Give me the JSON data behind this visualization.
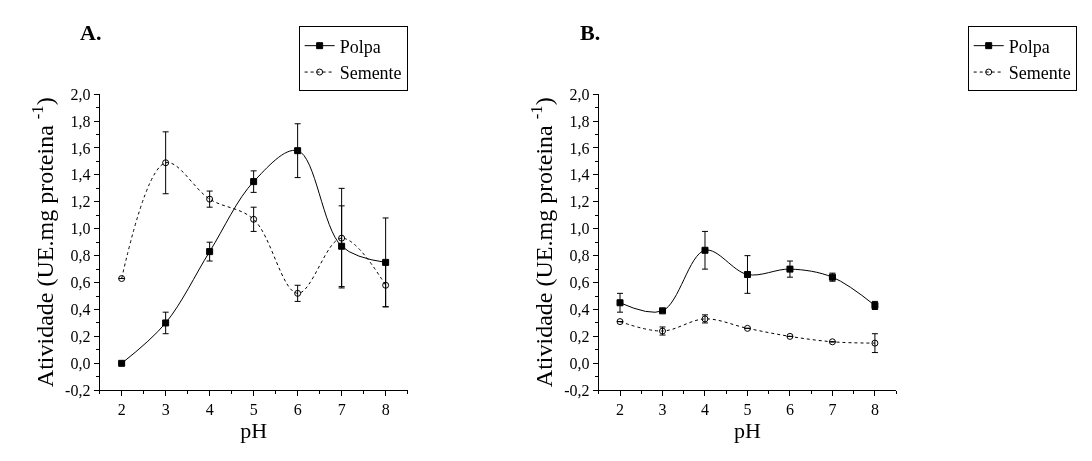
{
  "chart_data": [
    {
      "type": "line",
      "title": "A.",
      "xlabel": "pH",
      "ylabel": "Atividade (UE.mg proteina $^{-1}$)",
      "x": [
        2,
        3,
        4,
        5,
        6,
        7,
        8
      ],
      "series": [
        {
          "name": "Polpa",
          "color": "#000000",
          "marker": "square",
          "line_style": "solid",
          "values": [
            0.0,
            0.3,
            0.83,
            1.35,
            1.58,
            0.87,
            0.75
          ],
          "errors": [
            null,
            0.08,
            0.07,
            0.08,
            0.2,
            0.3,
            0.33
          ]
        },
        {
          "name": "Semente",
          "color": "#000000",
          "marker": "circle",
          "line_style": "dotted",
          "values": [
            0.63,
            1.49,
            1.22,
            1.07,
            0.52,
            0.93,
            0.58
          ],
          "errors": [
            null,
            0.23,
            0.06,
            0.09,
            0.06,
            0.37,
            0.16
          ]
        }
      ],
      "xlim": [
        1.5,
        8.5
      ],
      "xticks": [
        2,
        3,
        4,
        5,
        6,
        7,
        8
      ],
      "ylim": [
        -0.2,
        2.0
      ],
      "yticks": [
        {
          "value": -0.2,
          "label": "-0,2"
        },
        {
          "value": 0.0,
          "label": "0,0"
        },
        {
          "value": 0.2,
          "label": "0,2"
        },
        {
          "value": 0.4,
          "label": "0,4"
        },
        {
          "value": 0.6,
          "label": "0,6"
        },
        {
          "value": 0.8,
          "label": "0,8"
        },
        {
          "value": 1.0,
          "label": "1,0"
        },
        {
          "value": 1.2,
          "label": "1,2"
        },
        {
          "value": 1.4,
          "label": "1,4"
        },
        {
          "value": 1.6,
          "label": "1,6"
        },
        {
          "value": 1.8,
          "label": "1,8"
        },
        {
          "value": 2.0,
          "label": "2,0"
        }
      ],
      "grid": false,
      "legend": "top right"
    },
    {
      "type": "line",
      "title": "B.",
      "xlabel": "pH",
      "ylabel": "Atividade (UE.mg proteina $^{-1}$)",
      "x": [
        2,
        3,
        4,
        5,
        6,
        7,
        8
      ],
      "series": [
        {
          "name": "Polpa",
          "color": "#000000",
          "marker": "square",
          "line_style": "solid",
          "values": [
            0.45,
            0.39,
            0.84,
            0.66,
            0.7,
            0.64,
            0.43
          ],
          "errors": [
            0.07,
            null,
            0.14,
            0.14,
            0.06,
            0.03,
            0.03
          ]
        },
        {
          "name": "Semente",
          "color": "#000000",
          "marker": "circle",
          "line_style": "dotted",
          "values": [
            0.31,
            0.24,
            0.33,
            0.26,
            0.2,
            0.16,
            0.15
          ],
          "errors": [
            null,
            0.03,
            0.03,
            null,
            null,
            null,
            0.07
          ]
        }
      ],
      "xlim": [
        1.5,
        8.5
      ],
      "xticks": [
        2,
        3,
        4,
        5,
        6,
        7,
        8
      ],
      "ylim": [
        -0.2,
        2.0
      ],
      "yticks": [
        {
          "value": -0.2,
          "label": "-0,2"
        },
        {
          "value": 0.0,
          "label": "0,0"
        },
        {
          "value": 0.2,
          "label": "0,2"
        },
        {
          "value": 0.4,
          "label": "0,4"
        },
        {
          "value": 0.6,
          "label": "0,6"
        },
        {
          "value": 0.8,
          "label": "0,8"
        },
        {
          "value": 1.0,
          "label": "1,0"
        },
        {
          "value": 1.2,
          "label": "1,2"
        },
        {
          "value": 1.4,
          "label": "1,4"
        },
        {
          "value": 1.6,
          "label": "1,6"
        },
        {
          "value": 1.8,
          "label": "1,8"
        },
        {
          "value": 2.0,
          "label": "2,0"
        }
      ],
      "grid": false,
      "legend": "top right"
    }
  ]
}
